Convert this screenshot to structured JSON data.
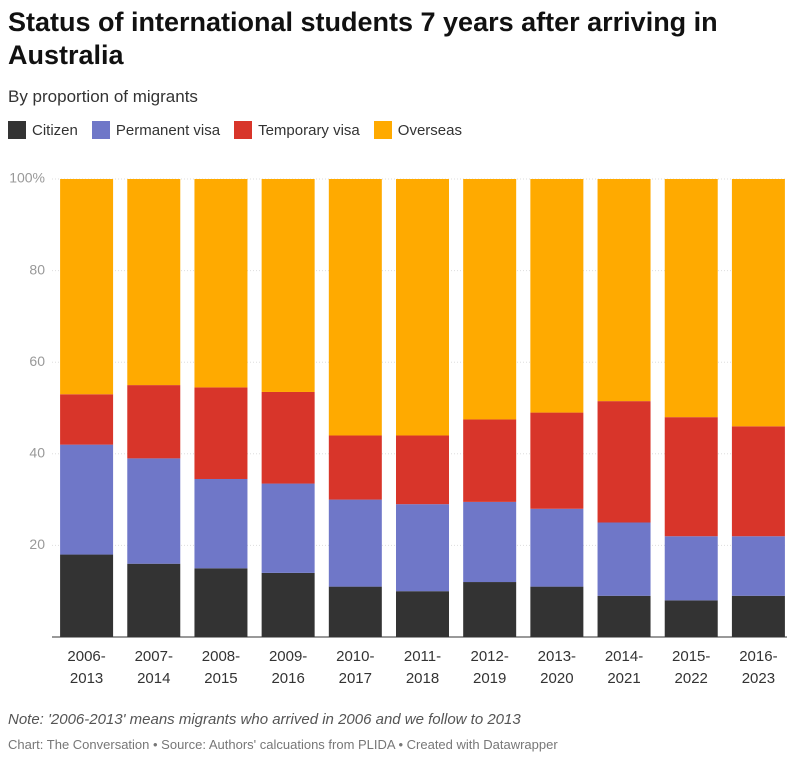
{
  "chart_data": {
    "type": "stacked_bar",
    "title": "Status of international students 7 years after arriving in Australia",
    "subtitle": "By proportion of migrants",
    "note": "Note: '2006-2013' means migrants who arrived in 2006 and we follow to 2013",
    "footer": "Chart: The Conversation • Source: Authors' calcuations from PLIDA  • Created with Datawrapper",
    "categories": [
      "2006-2013",
      "2007-2014",
      "2008-2015",
      "2009-2016",
      "2010-2017",
      "2011-2018",
      "2012-2019",
      "2013-2020",
      "2014-2021",
      "2015-2022",
      "2016-2023"
    ],
    "series": [
      {
        "name": "Citizen",
        "color": "#333333",
        "values": [
          18,
          16,
          15,
          14,
          11,
          10,
          12,
          11,
          9,
          8,
          9
        ]
      },
      {
        "name": "Permanent visa",
        "color": "#6f77c8",
        "values": [
          24,
          23,
          19.5,
          19.5,
          19,
          19,
          17.5,
          17,
          16,
          14,
          13
        ]
      },
      {
        "name": "Temporary visa",
        "color": "#d8352a",
        "values": [
          11,
          16,
          20,
          20,
          14,
          15,
          18,
          21,
          26.5,
          26,
          24
        ]
      },
      {
        "name": "Overseas",
        "color": "#ffaa00",
        "values": [
          47,
          45,
          45.5,
          46.5,
          56,
          56,
          52.5,
          51,
          48.5,
          52,
          54
        ]
      }
    ],
    "ylim": [
      0,
      100
    ],
    "yticks": [
      20,
      40,
      60,
      80,
      {
        "value": 100,
        "label": "100%"
      }
    ],
    "grid": true
  }
}
